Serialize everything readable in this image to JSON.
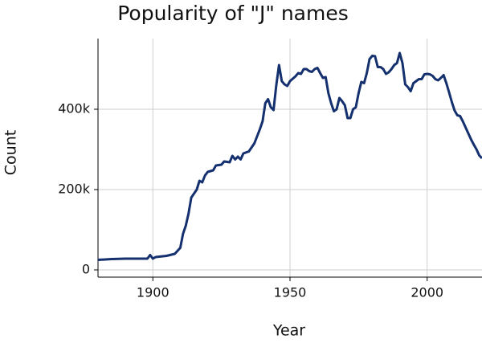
{
  "chart_data": {
    "type": "line",
    "title": "Popularity of \"J\" names",
    "x_label": "Year",
    "y_label": "Count",
    "x": [
      1880,
      1885,
      1890,
      1895,
      1898,
      1899,
      1900,
      1901,
      1905,
      1908,
      1910,
      1911,
      1912,
      1913,
      1914,
      1916,
      1917,
      1918,
      1919,
      1920,
      1922,
      1923,
      1925,
      1926,
      1928,
      1929,
      1930,
      1931,
      1932,
      1933,
      1935,
      1937,
      1939,
      1940,
      1941,
      1942,
      1943,
      1944,
      1945,
      1946,
      1947,
      1948,
      1949,
      1950,
      1952,
      1953,
      1954,
      1955,
      1956,
      1957,
      1958,
      1959,
      1960,
      1961,
      1962,
      1963,
      1964,
      1965,
      1966,
      1967,
      1968,
      1969,
      1970,
      1971,
      1972,
      1973,
      1974,
      1975,
      1976,
      1977,
      1978,
      1979,
      1980,
      1981,
      1982,
      1983,
      1984,
      1985,
      1986,
      1987,
      1988,
      1989,
      1990,
      1991,
      1992,
      1993,
      1994,
      1995,
      1996,
      1997,
      1998,
      1999,
      2000,
      2001,
      2002,
      2003,
      2004,
      2005,
      2006,
      2007,
      2008,
      2009,
      2010,
      2011,
      2012,
      2013,
      2014,
      2015,
      2016,
      2017,
      2018,
      2019,
      2020
    ],
    "series": [
      {
        "name": "J",
        "color": "#14306e",
        "values": [
          25000,
          27000,
          28000,
          28000,
          28000,
          37000,
          28000,
          32000,
          35000,
          40000,
          55000,
          90000,
          110000,
          140000,
          180000,
          200000,
          222000,
          218000,
          235000,
          244000,
          248000,
          260000,
          262000,
          270000,
          268000,
          284000,
          275000,
          282000,
          275000,
          290000,
          295000,
          315000,
          350000,
          370000,
          415000,
          425000,
          405000,
          398000,
          460000,
          510000,
          470000,
          462000,
          458000,
          470000,
          482000,
          490000,
          488000,
          500000,
          500000,
          495000,
          493000,
          500000,
          503000,
          490000,
          478000,
          480000,
          440000,
          415000,
          395000,
          400000,
          428000,
          420000,
          410000,
          378000,
          378000,
          400000,
          405000,
          440000,
          468000,
          465000,
          490000,
          525000,
          533000,
          532000,
          505000,
          505000,
          500000,
          488000,
          492000,
          500000,
          510000,
          515000,
          540000,
          515000,
          462000,
          455000,
          445000,
          465000,
          470000,
          475000,
          475000,
          487000,
          488000,
          487000,
          483000,
          475000,
          472000,
          478000,
          485000,
          465000,
          442000,
          418000,
          397000,
          385000,
          383000,
          370000,
          355000,
          340000,
          325000,
          312000,
          300000,
          285000,
          278000
        ]
      }
    ],
    "xlim": [
      1880,
      2020
    ],
    "xticks": [
      1900,
      1950,
      2000
    ],
    "ylim": [
      -18000,
      576000
    ],
    "yticks": [
      0,
      {
        "value": 200000,
        "label": "200k"
      },
      {
        "value": 400000,
        "label": "400k"
      }
    ],
    "grid": true
  }
}
